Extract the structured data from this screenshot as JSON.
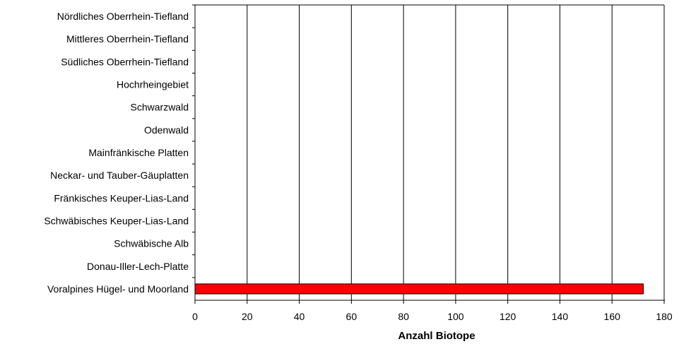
{
  "chart_data": {
    "type": "bar",
    "orientation": "horizontal",
    "categories": [
      "Nördliches Oberrhein-Tiefland",
      "Mittleres Oberrhein-Tiefland",
      "Südliches Oberrhein-Tiefland",
      "Hochrheingebiet",
      "Schwarzwald",
      "Odenwald",
      "Mainfränkische Platten",
      "Neckar- und Tauber-Gäuplatten",
      "Fränkisches Keuper-Lias-Land",
      "Schwäbisches Keuper-Lias-Land",
      "Schwäbische Alb",
      "Donau-Iller-Lech-Platte",
      "Voralpines Hügel- und Moorland"
    ],
    "values": [
      0,
      0,
      0,
      0,
      0,
      0,
      0,
      0,
      0,
      0,
      0,
      0,
      172
    ],
    "xlabel": "Anzahl Biotope",
    "ylabel": "",
    "xlim": [
      0,
      180
    ],
    "x_ticks": [
      0,
      20,
      40,
      60,
      80,
      100,
      120,
      140,
      160,
      180
    ],
    "grid": "vertical",
    "legend": "none",
    "bar_color": "#ff0000",
    "bar_edge_color": "#000000"
  }
}
